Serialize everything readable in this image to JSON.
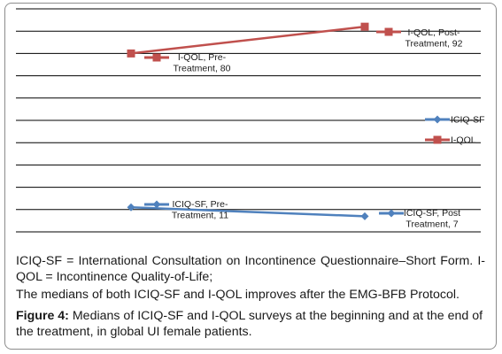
{
  "chart_data": {
    "type": "line",
    "x": [
      "Pre-Treatment",
      "Post-Treatment"
    ],
    "ylim": [
      0,
      100
    ],
    "grid": true,
    "legend_position": "right",
    "series": [
      {
        "name": "ICIQ-SF",
        "color": "#4f81bd",
        "marker": "diamond",
        "values": [
          11,
          7
        ],
        "labels": [
          "ICIQ-SF, Pre-\nTreatment, 11",
          "ICIQ-SF, Post\nTreatment, 7"
        ]
      },
      {
        "name": "I-QOL",
        "color": "#c0504d",
        "marker": "square",
        "values": [
          80,
          92
        ],
        "labels": [
          "I-QOL, Pre-\nTreatment, 80",
          "I-QOL, Post-\nTreatment, 92"
        ]
      }
    ]
  },
  "caption": {
    "note_1": "ICIQ-SF = International Consultation on Incontinence Questionnaire–Short Form. I-QOL = Incontinence Quality-of-Life;",
    "note_2": "The medians of both ICIQ-SF and I-QOL improves after the EMG-BFB Protocol.",
    "figure_label": "Figure 4:",
    "figure_text": " Medians of ICIQ-SF and I-QOL surveys at the beginning and at the end of the treatment, in global UI female patients."
  }
}
